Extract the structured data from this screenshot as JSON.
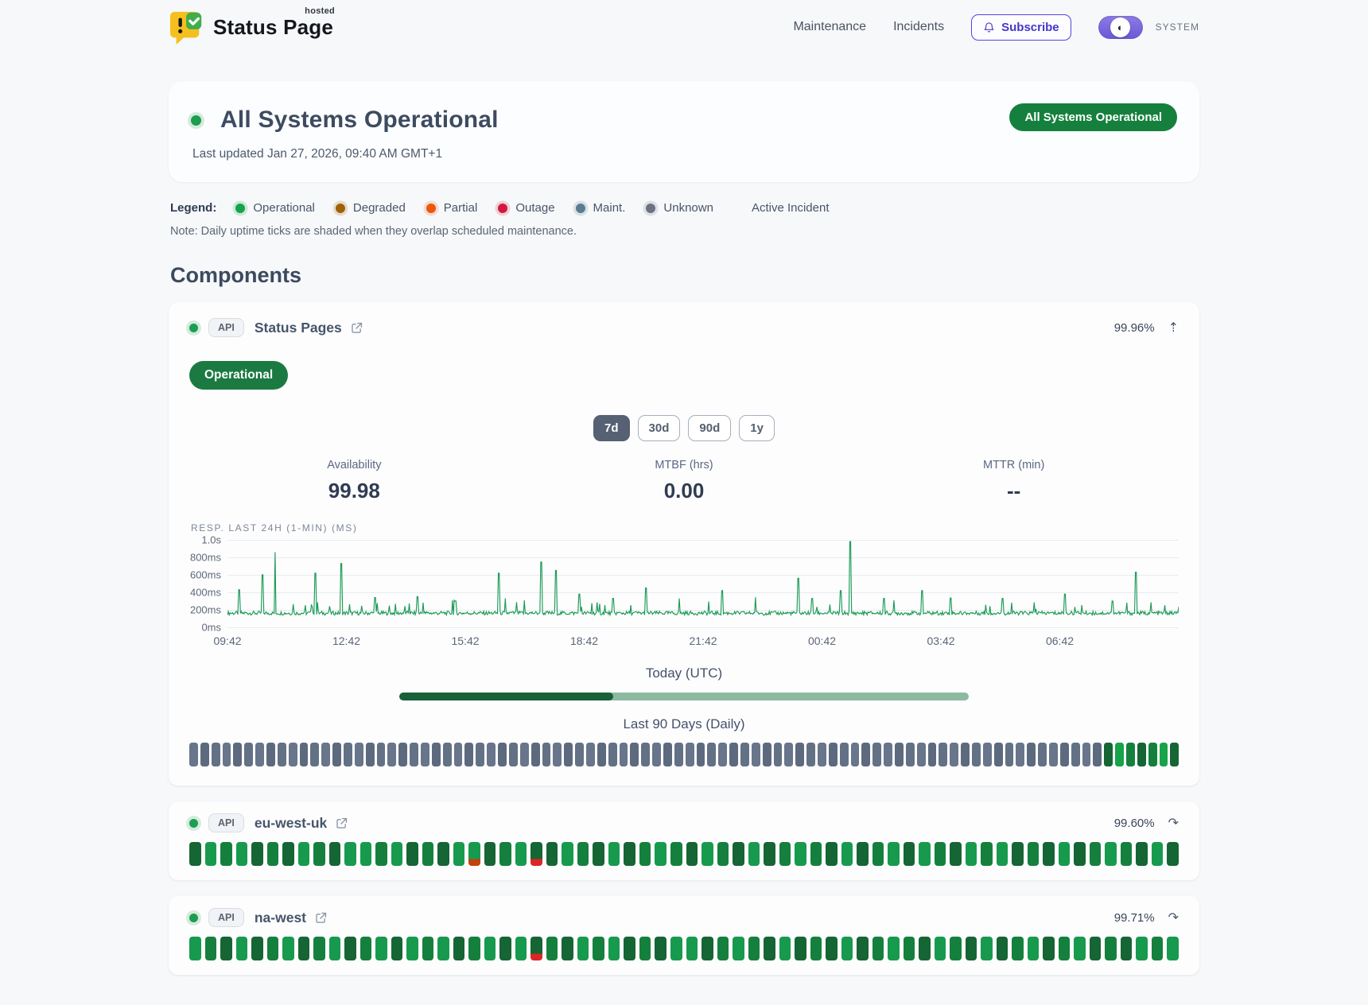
{
  "brand": {
    "name": "Status Page",
    "superscript": "hosted"
  },
  "nav": {
    "items": [
      "Maintenance",
      "Incidents"
    ],
    "subscribe_label": "Subscribe",
    "theme_label": "SYSTEM"
  },
  "icons": {
    "expanded": "⇡",
    "collapsed": "↷",
    "contrast": "◐"
  },
  "hero": {
    "title": "All Systems Operational",
    "last_updated": "Last updated Jan 27, 2026, 09:40 AM GMT+1",
    "badge": "All Systems Operational"
  },
  "legend": {
    "label": "Legend:",
    "items": [
      {
        "label": "Operational",
        "color": "#16a34a"
      },
      {
        "label": "Degraded",
        "color": "#a16207"
      },
      {
        "label": "Partial",
        "color": "#ea580c"
      },
      {
        "label": "Outage",
        "color": "#d1193e"
      },
      {
        "label": "Maint.",
        "color": "#5b7b8f"
      },
      {
        "label": "Unknown",
        "color": "#6b7280"
      }
    ],
    "active_incident_label": "Active Incident",
    "note": "Note: Daily uptime ticks are shaded when they overlap scheduled maintenance."
  },
  "components_heading": "Components",
  "component_main": {
    "badge": "API",
    "name": "Status Pages",
    "uptime_pct": "99.96%",
    "status_label": "Operational",
    "ranges": [
      "7d",
      "30d",
      "90d",
      "1y"
    ],
    "active_range": "7d",
    "stats": [
      {
        "label": "Availability",
        "value": "99.98"
      },
      {
        "label": "MTBF (hrs)",
        "value": "0.00"
      },
      {
        "label": "MTTR (min)",
        "value": "--"
      }
    ],
    "today_label": "Today (UTC)",
    "today_progress": 0.375,
    "progress_colors": {
      "done": "#186038",
      "remaining": "#8cb9a0"
    },
    "last90_label": "Last 90 Days (Daily)",
    "last90": {
      "total": 90,
      "gray_shades": [
        "#68758a",
        "#5d6a7e",
        "#637185"
      ],
      "tail_colors": [
        "#166534",
        "#16a34a",
        "#15803d",
        "#166534",
        "#15803d",
        "#16a34a",
        "#166534"
      ]
    }
  },
  "chart_data": {
    "type": "line",
    "title": "RESP. LAST 24H (1-MIN) (MS)",
    "line_color": "#1d9b57",
    "y_max": 1000,
    "y_tick_labels": [
      "1.0s",
      "800ms",
      "600ms",
      "400ms",
      "200ms",
      "0ms"
    ],
    "y_tick_values": [
      1000,
      800,
      600,
      400,
      200,
      0
    ],
    "x_tick_labels": [
      "09:42",
      "12:42",
      "15:42",
      "18:42",
      "21:42",
      "00:42",
      "03:42",
      "06:42"
    ],
    "x_tick_positions": [
      0,
      0.125,
      0.25,
      0.375,
      0.5,
      0.625,
      0.75,
      0.875
    ],
    "baseline_ms": 165,
    "noise_amplitude_ms": 45,
    "samples": 1100,
    "spikes": [
      [
        0.012,
        430
      ],
      [
        0.037,
        600
      ],
      [
        0.05,
        860
      ],
      [
        0.092,
        620
      ],
      [
        0.12,
        730
      ],
      [
        0.155,
        340
      ],
      [
        0.2,
        350
      ],
      [
        0.24,
        300
      ],
      [
        0.285,
        620
      ],
      [
        0.33,
        745
      ],
      [
        0.345,
        650
      ],
      [
        0.37,
        380
      ],
      [
        0.405,
        330
      ],
      [
        0.44,
        450
      ],
      [
        0.475,
        330
      ],
      [
        0.52,
        420
      ],
      [
        0.555,
        345
      ],
      [
        0.6,
        560
      ],
      [
        0.615,
        330
      ],
      [
        0.645,
        420
      ],
      [
        0.655,
        980
      ],
      [
        0.69,
        330
      ],
      [
        0.73,
        420
      ],
      [
        0.76,
        335
      ],
      [
        0.815,
        330
      ],
      [
        0.88,
        380
      ],
      [
        0.93,
        300
      ],
      [
        0.955,
        630
      ]
    ]
  },
  "tick_palette": {
    "0": "#179a4e",
    "1": "#166534",
    "2": "#15803d",
    "p": "linear-gradient(to bottom,#179a4e 72%,#c2410c 72%)",
    "o": "linear-gradient(to bottom,#166534 72%,#dc2626 72%)"
  },
  "components": [
    {
      "badge": "API",
      "name": "eu-west-uk",
      "uptime_pct": "99.60%",
      "ticks": "102012102100201210p120o102101202102101202101201021020121 01202101"
    },
    {
      "badge": "API",
      "name": "na-west",
      "uptime_pct": "99.71%",
      "ticks": "0210120120120102012010o210201210012021012101202102101201 20121020"
    }
  ]
}
